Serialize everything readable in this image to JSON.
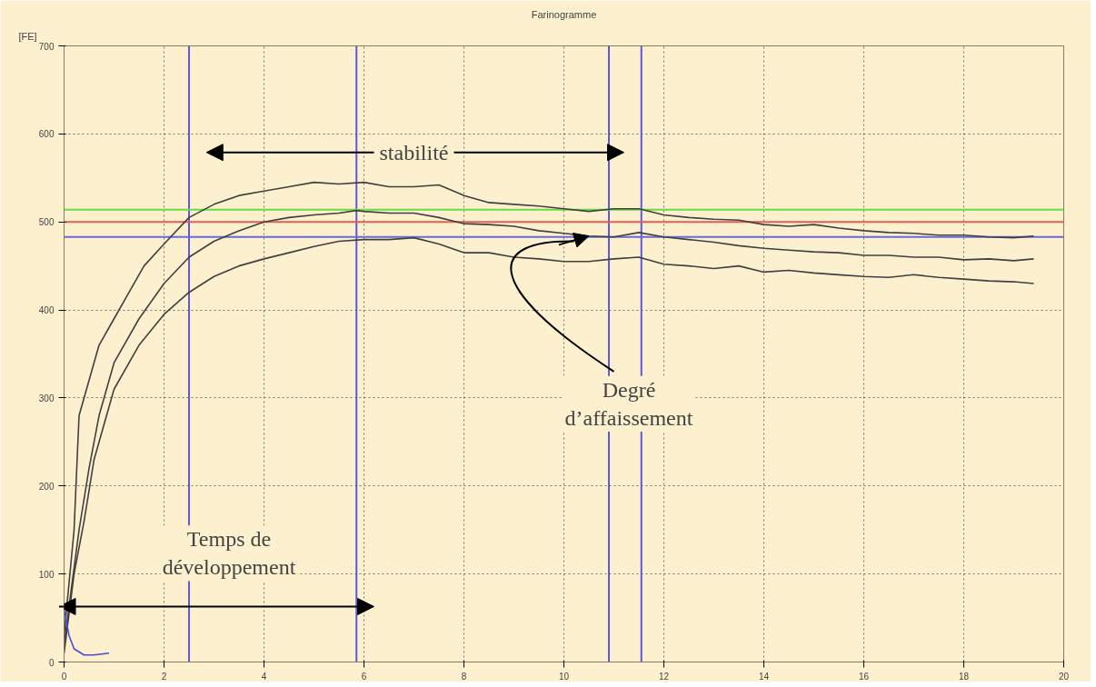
{
  "chart_data": {
    "type": "line",
    "title": "Farinogramme",
    "ylabel": "[FE]",
    "xlim": [
      0,
      20
    ],
    "ylim": [
      0,
      700
    ],
    "xticks": [
      0,
      2,
      4,
      6,
      8,
      10,
      12,
      14,
      16,
      18,
      20
    ],
    "yticks": [
      0,
      100,
      200,
      300,
      400,
      500,
      600,
      700
    ],
    "grid": true,
    "marker": "none",
    "line_style": "solid",
    "series": [
      {
        "color": "#404040",
        "x": [
          0,
          0.2,
          0.3,
          0.5,
          0.7,
          1,
          1.3,
          1.6,
          2,
          2.5,
          3,
          3.5,
          4,
          4.5,
          5,
          5.5,
          6,
          6.5,
          7,
          7.5,
          8,
          8.5,
          9,
          9.5,
          10,
          10.5,
          11,
          11.5,
          12,
          12.5,
          13,
          13.5,
          14,
          14.5,
          15,
          15.5,
          16,
          16.5,
          17,
          17.5,
          18,
          18.5,
          19,
          19.4
        ],
        "values": [
          30,
          150,
          280,
          320,
          360,
          390,
          420,
          450,
          475,
          505,
          520,
          530,
          535,
          540,
          545,
          543,
          545,
          540,
          540,
          542,
          530,
          522,
          520,
          518,
          515,
          512,
          515,
          515,
          508,
          505,
          503,
          502,
          497,
          495,
          497,
          493,
          490,
          488,
          487,
          485,
          485,
          483,
          482,
          484
        ]
      },
      {
        "color": "#404040",
        "x": [
          0,
          0.3,
          0.5,
          0.7,
          1,
          1.5,
          2,
          2.5,
          3,
          3.5,
          4,
          4.5,
          5,
          5.5,
          5.85,
          6,
          6.5,
          7,
          7.5,
          8,
          8.5,
          9,
          9.5,
          10,
          10.5,
          11,
          11.5,
          12,
          12.5,
          13,
          13.5,
          14,
          14.5,
          15,
          15.5,
          16,
          16.5,
          17,
          17.5,
          18,
          18.5,
          19,
          19.4
        ],
        "values": [
          20,
          150,
          220,
          280,
          340,
          390,
          430,
          460,
          478,
          490,
          500,
          505,
          508,
          510,
          513,
          512,
          510,
          510,
          505,
          498,
          497,
          495,
          490,
          487,
          484,
          483,
          488,
          483,
          480,
          477,
          473,
          470,
          468,
          466,
          465,
          462,
          462,
          460,
          460,
          457,
          458,
          456,
          458
        ]
      },
      {
        "color": "#404040",
        "x": [
          0,
          0.2,
          0.4,
          0.6,
          0.8,
          1,
          1.5,
          2,
          2.5,
          3,
          3.5,
          4,
          4.5,
          5,
          5.5,
          6,
          6.5,
          7,
          7.5,
          8,
          8.5,
          9,
          9.5,
          10,
          10.5,
          11,
          11.5,
          12,
          12.5,
          13,
          13.5,
          14,
          14.5,
          15,
          15.5,
          16,
          16.5,
          17,
          17.5,
          18,
          18.5,
          19,
          19.4
        ],
        "values": [
          10,
          100,
          160,
          230,
          270,
          310,
          360,
          395,
          420,
          438,
          450,
          458,
          465,
          472,
          478,
          480,
          480,
          482,
          475,
          465,
          465,
          460,
          458,
          455,
          455,
          458,
          460,
          452,
          450,
          447,
          450,
          443,
          445,
          442,
          440,
          438,
          437,
          440,
          437,
          435,
          433,
          432,
          430
        ]
      },
      {
        "color": "#4a4ad8",
        "x": [
          0,
          0.1,
          0.2,
          0.4,
          0.6,
          0.9
        ],
        "values": [
          60,
          30,
          15,
          8,
          8,
          10
        ]
      }
    ],
    "ref_lines": [
      {
        "axis": "x",
        "value": 2.5,
        "color": "#5a5ae0"
      },
      {
        "axis": "x",
        "value": 5.85,
        "color": "#5a5ae0"
      },
      {
        "axis": "x",
        "value": 11.55,
        "color": "#5a5ae0"
      },
      {
        "axis": "x",
        "value": 10.9,
        "color": "#5a5ae0"
      },
      {
        "axis": "y",
        "value": 514,
        "color": "#66dd44"
      },
      {
        "axis": "y",
        "value": 500,
        "color": "#e06050"
      },
      {
        "axis": "y",
        "value": 483,
        "color": "#6a6ad8"
      }
    ],
    "annotations": [
      "stabilité",
      "Temps de\ndéveloppement",
      "Degré\nd’affaissement"
    ]
  }
}
